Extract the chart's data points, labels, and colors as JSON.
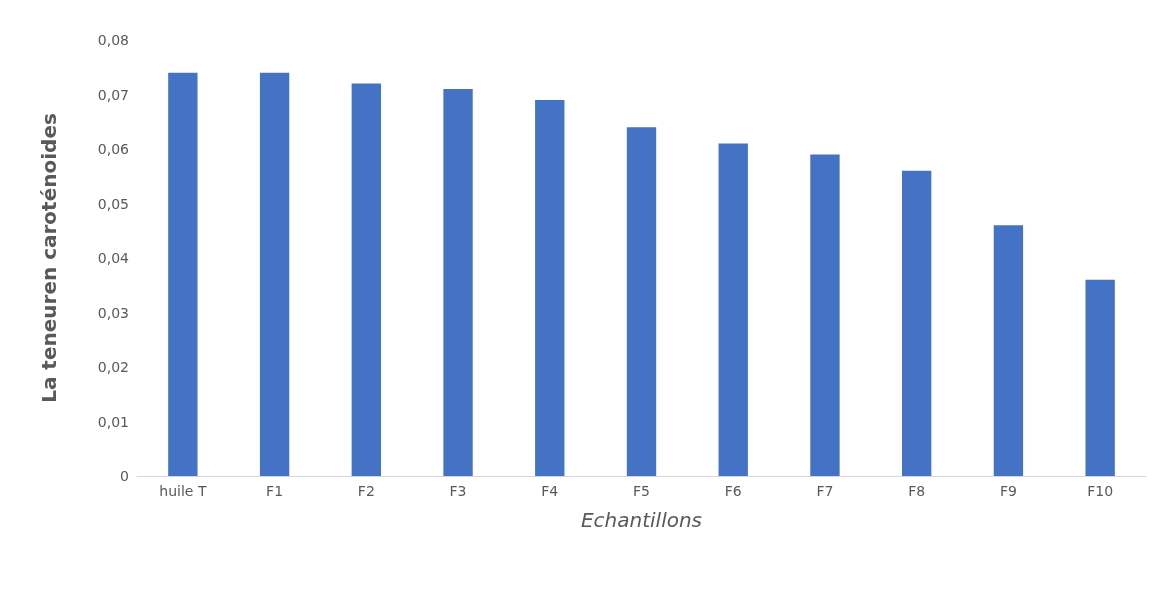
{
  "chart_data": {
    "type": "bar",
    "xlabel": "Echantillons",
    "ylabel": "La teneuren caroténoides",
    "categories": [
      "huile T",
      "F1",
      "F2",
      "F3",
      "F4",
      "F5",
      "F6",
      "F7",
      "F8",
      "F9",
      "F10"
    ],
    "values": [
      0.074,
      0.074,
      0.072,
      0.071,
      0.069,
      0.064,
      0.061,
      0.059,
      0.056,
      0.046,
      0.036
    ],
    "color": "#4472c4",
    "ylim": [
      0,
      0.08
    ],
    "yticks": [
      0,
      {
        "value": 0.01,
        "label": "0,01"
      },
      {
        "value": 0.02,
        "label": "0,02"
      },
      {
        "value": 0.03,
        "label": "0,03"
      },
      {
        "value": 0.04,
        "label": "0,04"
      },
      {
        "value": 0.05,
        "label": "0,05"
      },
      {
        "value": 0.06,
        "label": "0,06"
      },
      {
        "value": 0.07,
        "label": "0,07"
      },
      {
        "value": 0.08,
        "label": "0,08"
      }
    ],
    "grid": false
  }
}
